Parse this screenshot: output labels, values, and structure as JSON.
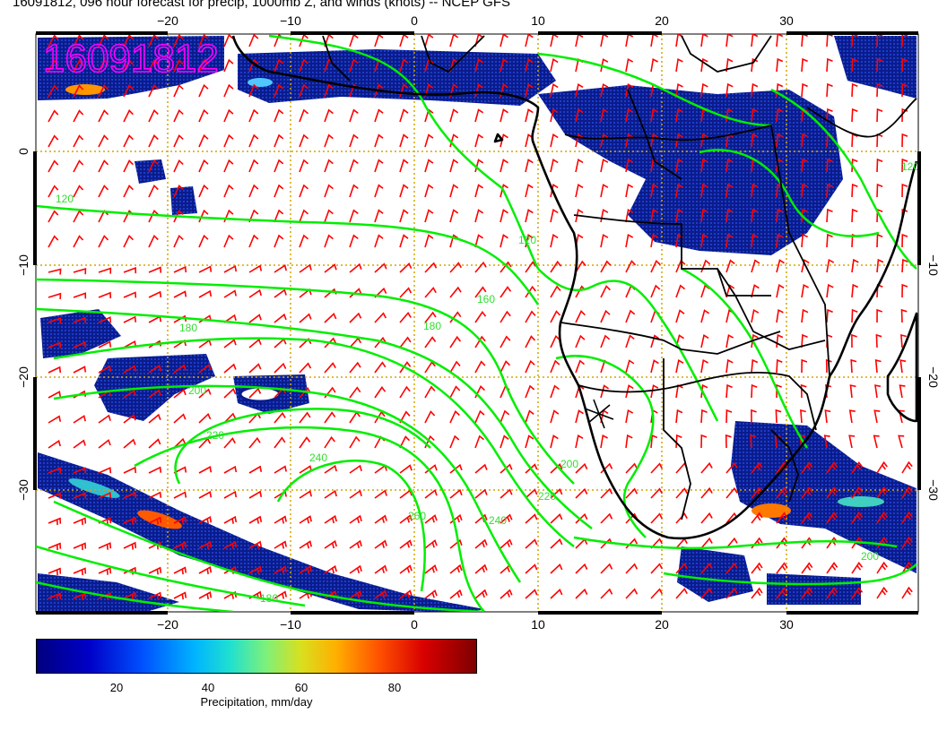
{
  "title": "16091812, 096 hour forecast for precip, 1000mb Z, and winds (knots) -- NCEP GFS",
  "timestamp_overlay": "16091812",
  "map": {
    "lon_ticks": [
      "−20",
      "−10",
      "0",
      "10",
      "20",
      "30"
    ],
    "lat_ticks_left": [
      "0",
      "−10",
      "−20",
      "−30"
    ],
    "lat_ticks_right": [
      "−10",
      "−20",
      "−30"
    ],
    "contour_labels": [
      "120",
      "180",
      "200",
      "220",
      "240",
      "260",
      "240",
      "220",
      "200",
      "180",
      "160",
      "120",
      "200",
      "180",
      "120"
    ],
    "colors": {
      "precip_dark": "#00007f",
      "contour": "#00ee00",
      "wind_barb": "#ff0000",
      "overlay_text": "#ff00ff",
      "grid": "#d4a600",
      "coastline": "#000000"
    }
  },
  "colorbar": {
    "labels": [
      "20",
      "40",
      "60",
      "80"
    ],
    "title": "Precipitation, mm/day"
  }
}
